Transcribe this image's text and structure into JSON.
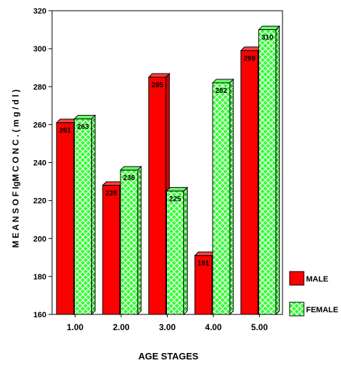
{
  "chart_data": {
    "type": "bar",
    "title": "",
    "xlabel": "AGE STAGES",
    "ylabel": "M E A N S  O F  IgM  C O N C .  ( m g / d l )",
    "ylim": [
      160,
      320
    ],
    "yticks": [
      160,
      180,
      200,
      220,
      240,
      260,
      280,
      300,
      320
    ],
    "ytick_labels": [
      "160",
      "180",
      "200",
      "220",
      "240",
      "260",
      "280",
      "300",
      "320"
    ],
    "categories": [
      "1.00",
      "2.00",
      "3.00",
      "4.00",
      "5.00"
    ],
    "grid": false,
    "legend_position": "bottom-right",
    "series": [
      {
        "name": "MALE",
        "values": [
          261,
          228,
          285,
          191,
          299
        ],
        "value_labels": [
          "261",
          "228",
          "285",
          "191",
          "299"
        ],
        "color": "#ff0000",
        "pattern": "solid"
      },
      {
        "name": "FEMALE",
        "values": [
          263,
          236,
          225,
          282,
          310
        ],
        "value_labels": [
          "263",
          "236",
          "225",
          "282",
          "310"
        ],
        "color": "#00ff00",
        "pattern": "crosshatch"
      }
    ]
  }
}
